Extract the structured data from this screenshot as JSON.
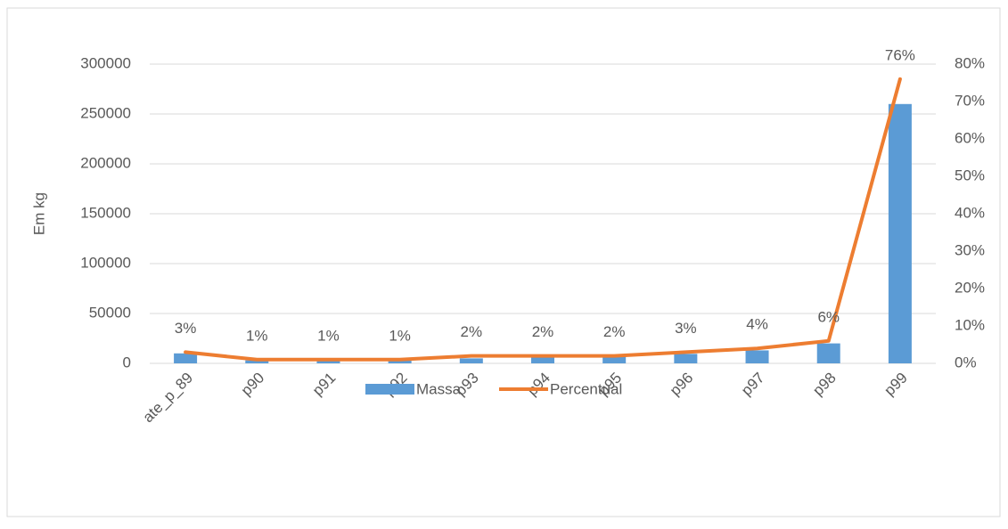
{
  "chart_data": {
    "type": "bar_line",
    "y_label": "Em kg",
    "categories": [
      "ate_p_89",
      "p90",
      "p91",
      "p92",
      "p93",
      "p94",
      "p95",
      "p96",
      "p97",
      "p98",
      "p99"
    ],
    "series": [
      {
        "name": "Massa",
        "type": "bar",
        "color": "#5b9bd5",
        "values": [
          10000,
          3000,
          3500,
          4000,
          5000,
          6000,
          7000,
          9500,
          13000,
          20000,
          260000
        ]
      },
      {
        "name": "Percentual",
        "type": "line",
        "axis": "y2",
        "color": "#ed7d31",
        "values": [
          3,
          1,
          1,
          1,
          2,
          2,
          2,
          3,
          4,
          6,
          76
        ],
        "value_labels": [
          "3%",
          "1%",
          "1%",
          "1%",
          "2%",
          "2%",
          "2%",
          "3%",
          "4%",
          "6%",
          "76%"
        ]
      }
    ],
    "ylim": [
      0,
      300000
    ],
    "yticks": [
      0,
      50000,
      100000,
      150000,
      200000,
      250000,
      300000
    ],
    "y2lim": [
      0,
      80
    ],
    "y2ticks": [
      {
        "value": 0,
        "label": "0%"
      },
      {
        "value": 10,
        "label": "10%"
      },
      {
        "value": 20,
        "label": "20%"
      },
      {
        "value": 30,
        "label": "30%"
      },
      {
        "value": 40,
        "label": "40%"
      },
      {
        "value": 50,
        "label": "50%"
      },
      {
        "value": 60,
        "label": "60%"
      },
      {
        "value": 70,
        "label": "70%"
      },
      {
        "value": 80,
        "label": "80%"
      }
    ],
    "grid": true,
    "legend": "bottom"
  }
}
